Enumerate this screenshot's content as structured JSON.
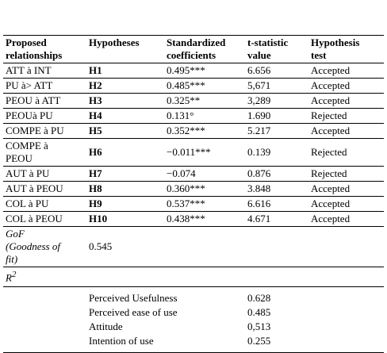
{
  "table": {
    "headers": [
      "Proposed\nrelationships",
      "Hypotheses",
      "Standardized\ncoefficients",
      "t-statistic\nvalue",
      "Hypothesis\ntest"
    ],
    "rows": [
      [
        "ATT à INT",
        "H1",
        "0.495***",
        "6.656",
        "Accepted"
      ],
      [
        "PU à> ATT",
        "H2",
        "0.485***",
        "5,671",
        "Accepted"
      ],
      [
        "PEOU à ATT",
        "H3",
        "0.325**",
        "3,289",
        "Accepted"
      ],
      [
        "PEOUà PU",
        "H4",
        "0.131°",
        "1.690",
        "Rejected"
      ],
      [
        "COMPE à PU",
        "H5",
        "0.352***",
        "5.217",
        "Accepted"
      ],
      [
        "COMPE à\nPEOU",
        "H6",
        "−0.011***",
        "0.139",
        "Rejected"
      ],
      [
        "AUT à PU",
        "H7",
        "−0.074",
        "0.876",
        "Rejected"
      ],
      [
        "AUT à PEOU",
        "H8",
        "0.360***",
        "3.848",
        "Accepted"
      ],
      [
        "COL à PU",
        "H9",
        "0.537***",
        "6.616",
        "Accepted"
      ],
      [
        "COL à PEOU",
        "H10",
        "0.438***",
        "4.671",
        "Accepted"
      ]
    ],
    "gof": {
      "label": "GoF\n(Goodness of\nfit)",
      "value": "0.545"
    },
    "r2": {
      "label": "R",
      "sup": "2"
    },
    "r2_rows": [
      [
        "Perceived Usefulness",
        "0.628"
      ],
      [
        "Perceived ease of use",
        "0.485"
      ],
      [
        "Attitude",
        "0,513"
      ],
      [
        "Intention of use",
        "0.255"
      ]
    ]
  }
}
